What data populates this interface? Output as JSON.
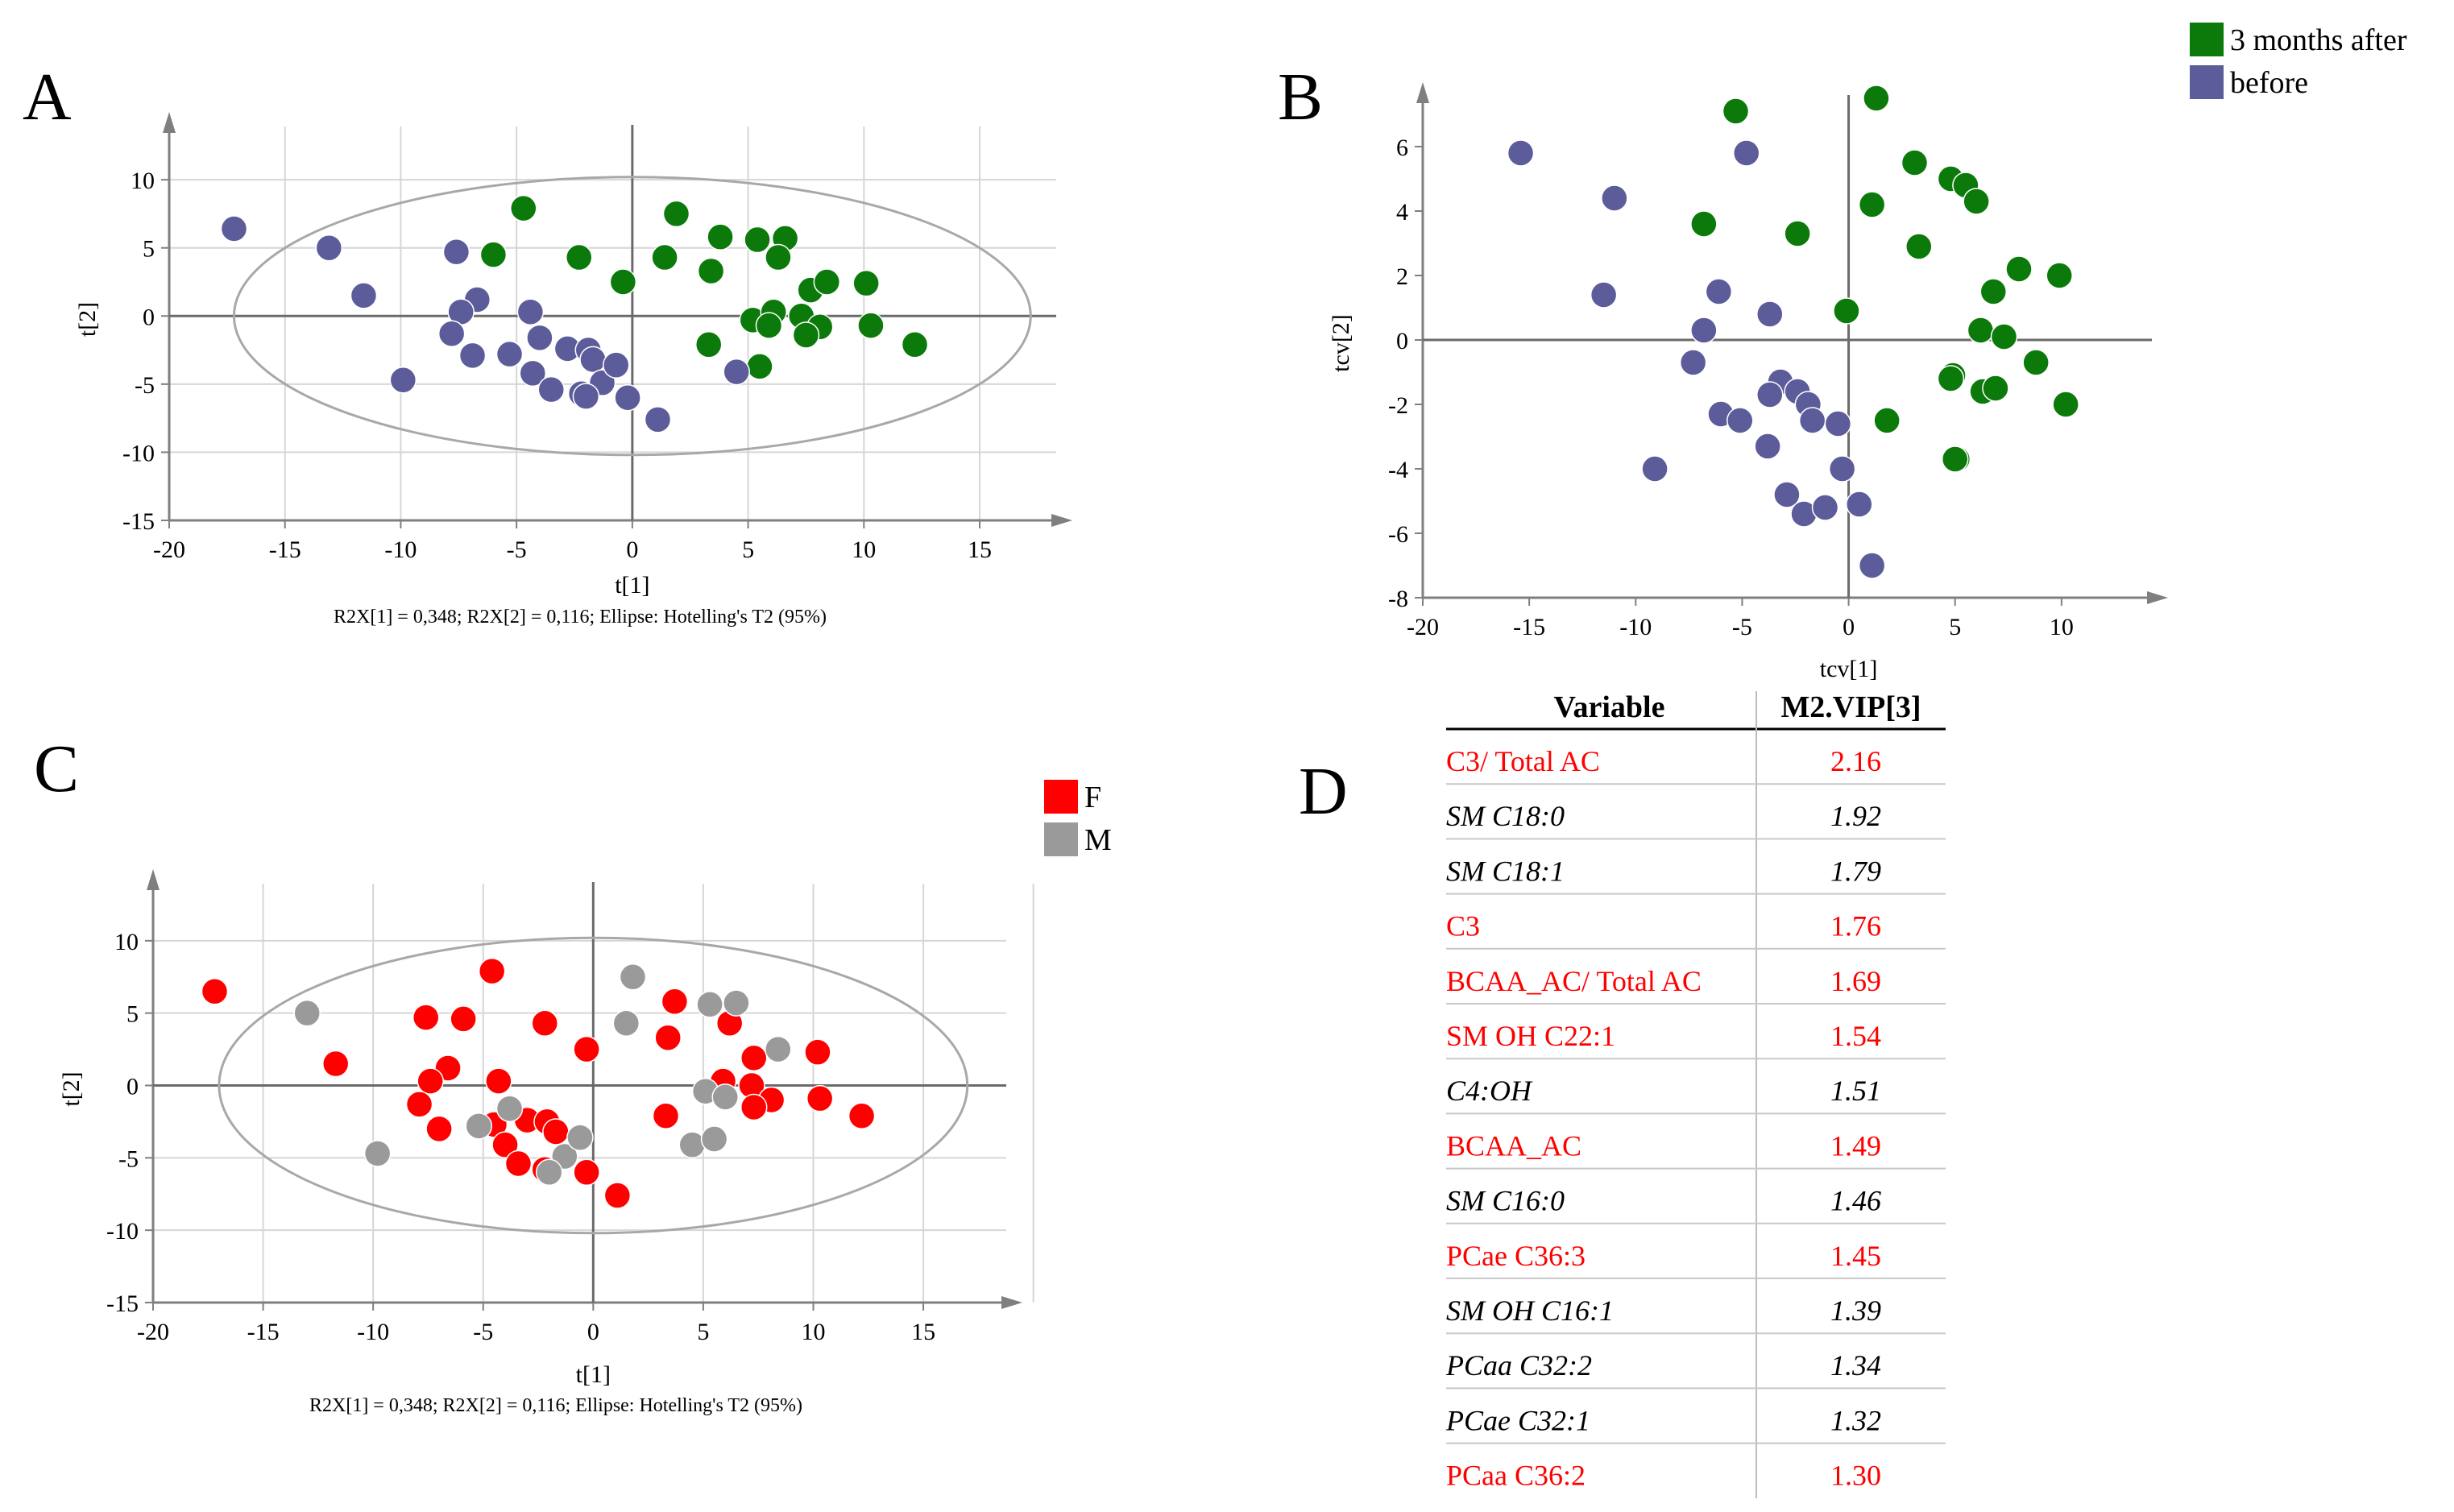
{
  "colors": {
    "green": "#0b7a0b",
    "purple": "#5d5c9a",
    "red": "#ff0000",
    "gray": "#9a9a9a",
    "grid": "#d6d6d6",
    "axis": "#7f7f7f",
    "ellipse": "#a8a8a8",
    "table_red": "#ff0000",
    "table_black": "#000000"
  },
  "chart_data": [
    {
      "panel": "A",
      "type": "scatter",
      "xlabel": "t[1]",
      "ylabel": "t[2]",
      "xticks": [
        -20,
        -15,
        -10,
        -5,
        0,
        5,
        10,
        15
      ],
      "yticks": [
        10,
        5,
        0,
        -5,
        -10,
        -15
      ],
      "xlim": [
        -20,
        19
      ],
      "ylim": [
        -15,
        14.5
      ],
      "grid": true,
      "ellipse": {
        "cx": 0,
        "cy": 0,
        "rx": 17.2,
        "ry": 10.2
      },
      "footnote": "R2X[1] = 0,348; R2X[2] = 0,116; Ellipse: Hotelling's T2 (95%)",
      "series": [
        {
          "name": "3 months after",
          "color": "green",
          "points": [
            [
              -4.7,
              7.9
            ],
            [
              -6.0,
              4.5
            ],
            [
              -2.3,
              4.3
            ],
            [
              -0.4,
              2.5
            ],
            [
              1.4,
              4.3
            ],
            [
              1.9,
              7.5
            ],
            [
              3.4,
              3.3
            ],
            [
              3.8,
              5.8
            ],
            [
              5.4,
              5.6
            ],
            [
              6.6,
              5.7
            ],
            [
              6.3,
              4.3
            ],
            [
              7.7,
              1.9
            ],
            [
              8.4,
              2.5
            ],
            [
              10.1,
              2.4
            ],
            [
              5.2,
              -0.3
            ],
            [
              6.1,
              0.3
            ],
            [
              7.3,
              0.0
            ],
            [
              5.9,
              -0.7
            ],
            [
              8.1,
              -0.8
            ],
            [
              10.3,
              -0.7
            ],
            [
              7.5,
              -1.4
            ],
            [
              3.3,
              -2.1
            ],
            [
              5.5,
              -3.7
            ],
            [
              12.2,
              -2.1
            ]
          ]
        },
        {
          "name": "before",
          "color": "purple",
          "points": [
            [
              -17.2,
              6.4
            ],
            [
              -13.1,
              5.0
            ],
            [
              -11.6,
              1.5
            ],
            [
              -7.6,
              4.7
            ],
            [
              -6.7,
              1.2
            ],
            [
              -7.4,
              0.3
            ],
            [
              -7.8,
              -1.3
            ],
            [
              -6.9,
              -2.9
            ],
            [
              -9.9,
              -4.7
            ],
            [
              -5.3,
              -2.8
            ],
            [
              -4.4,
              0.3
            ],
            [
              -4.0,
              -1.6
            ],
            [
              -2.8,
              -2.4
            ],
            [
              -4.3,
              -4.2
            ],
            [
              -3.5,
              -5.4
            ],
            [
              -2.2,
              -5.7
            ],
            [
              -1.9,
              -2.5
            ],
            [
              -1.7,
              -3.2
            ],
            [
              -1.3,
              -4.9
            ],
            [
              -0.7,
              -3.6
            ],
            [
              -2.0,
              -5.9
            ],
            [
              -0.2,
              -6.0
            ],
            [
              1.1,
              -7.6
            ],
            [
              4.5,
              -4.1
            ]
          ]
        }
      ]
    },
    {
      "panel": "B",
      "type": "scatter",
      "xlabel": "tcv[1]",
      "ylabel": "tcv[2]",
      "xticks": [
        -20,
        -15,
        -10,
        -5,
        0,
        5,
        10
      ],
      "yticks": [
        6,
        4,
        2,
        0,
        -2,
        -4,
        -6,
        -8
      ],
      "xlim": [
        -20,
        15
      ],
      "ylim": [
        -8,
        7.8
      ],
      "grid": false,
      "legend": {
        "position": "top-right",
        "entries": [
          {
            "label": "3 months after",
            "color": "green"
          },
          {
            "label": "before",
            "color": "purple"
          }
        ]
      },
      "series": [
        {
          "name": "3 months after",
          "color": "green",
          "points": [
            [
              -5.3,
              7.1
            ],
            [
              1.3,
              7.5
            ],
            [
              3.1,
              5.5
            ],
            [
              4.8,
              5.0
            ],
            [
              5.5,
              4.8
            ],
            [
              6.0,
              4.3
            ],
            [
              1.1,
              4.2
            ],
            [
              -6.8,
              3.6
            ],
            [
              -2.4,
              3.3
            ],
            [
              3.3,
              2.9
            ],
            [
              8.0,
              2.2
            ],
            [
              9.9,
              2.0
            ],
            [
              6.8,
              1.5
            ],
            [
              -0.1,
              0.9
            ],
            [
              6.2,
              0.3
            ],
            [
              7.3,
              0.1
            ],
            [
              8.8,
              -0.7
            ],
            [
              4.9,
              -1.1
            ],
            [
              4.8,
              -1.2
            ],
            [
              6.3,
              -1.6
            ],
            [
              6.9,
              -1.5
            ],
            [
              10.2,
              -2.0
            ],
            [
              1.8,
              -2.5
            ],
            [
              5.1,
              -3.7
            ],
            [
              5.0,
              -3.7
            ]
          ]
        },
        {
          "name": "before",
          "color": "purple",
          "points": [
            [
              -15.4,
              5.8
            ],
            [
              -11.0,
              4.4
            ],
            [
              -4.8,
              5.8
            ],
            [
              -11.5,
              1.4
            ],
            [
              -6.1,
              1.5
            ],
            [
              -3.7,
              0.8
            ],
            [
              -6.8,
              0.3
            ],
            [
              -7.3,
              -0.7
            ],
            [
              -3.2,
              -1.3
            ],
            [
              -3.7,
              -1.7
            ],
            [
              -2.4,
              -1.6
            ],
            [
              -1.9,
              -2.0
            ],
            [
              -1.7,
              -2.5
            ],
            [
              -0.5,
              -2.6
            ],
            [
              -6.0,
              -2.3
            ],
            [
              -5.1,
              -2.5
            ],
            [
              -3.8,
              -3.3
            ],
            [
              -9.1,
              -4.0
            ],
            [
              -0.3,
              -4.0
            ],
            [
              -2.9,
              -4.8
            ],
            [
              -2.1,
              -5.4
            ],
            [
              -1.1,
              -5.2
            ],
            [
              0.5,
              -5.1
            ],
            [
              1.1,
              -7.0
            ]
          ]
        }
      ]
    },
    {
      "panel": "C",
      "type": "scatter",
      "xlabel": "t[1]",
      "ylabel": "t[2]",
      "xticks": [
        -20,
        -15,
        -10,
        -5,
        0,
        5,
        10,
        15
      ],
      "yticks": [
        10,
        5,
        0,
        -5,
        -10,
        -15
      ],
      "xlim": [
        -20,
        19.5
      ],
      "ylim": [
        -15,
        14.5
      ],
      "grid": true,
      "ellipse": {
        "cx": 0,
        "cy": 0,
        "rx": 17.0,
        "ry": 10.2
      },
      "footnote": "R2X[1] = 0,348; R2X[2] = 0,116; Ellipse: Hotelling's T2 (95%)",
      "legend": {
        "position": "top-right",
        "entries": [
          {
            "label": "F",
            "color": "red"
          },
          {
            "label": "M",
            "color": "gray"
          }
        ]
      },
      "series": [
        {
          "name": "F",
          "color": "red",
          "points": [
            [
              -17.2,
              6.5
            ],
            [
              -11.7,
              1.5
            ],
            [
              -7.6,
              4.7
            ],
            [
              -5.9,
              4.6
            ],
            [
              -4.6,
              7.9
            ],
            [
              -2.2,
              4.3
            ],
            [
              -0.3,
              2.5
            ],
            [
              3.7,
              5.8
            ],
            [
              6.2,
              4.3
            ],
            [
              3.4,
              3.3
            ],
            [
              7.3,
              1.9
            ],
            [
              10.2,
              2.3
            ],
            [
              -6.6,
              1.2
            ],
            [
              -7.4,
              0.3
            ],
            [
              -4.3,
              0.3
            ],
            [
              -7.9,
              -1.3
            ],
            [
              -7.0,
              -3.0
            ],
            [
              -4.5,
              -2.7
            ],
            [
              -3.0,
              -2.4
            ],
            [
              -2.1,
              -2.5
            ],
            [
              -1.7,
              -3.2
            ],
            [
              -4.0,
              -4.1
            ],
            [
              -3.4,
              -5.4
            ],
            [
              -2.2,
              -5.8
            ],
            [
              -0.3,
              -6.0
            ],
            [
              1.1,
              -7.6
            ],
            [
              5.9,
              0.3
            ],
            [
              7.2,
              0.0
            ],
            [
              8.1,
              -1.0
            ],
            [
              7.3,
              -1.5
            ],
            [
              10.3,
              -0.9
            ],
            [
              12.2,
              -2.1
            ],
            [
              3.3,
              -2.1
            ]
          ]
        },
        {
          "name": "M",
          "color": "gray",
          "points": [
            [
              -13.0,
              5.0
            ],
            [
              -9.8,
              -4.7
            ],
            [
              -5.2,
              -2.8
            ],
            [
              -3.8,
              -1.6
            ],
            [
              -1.3,
              -4.9
            ],
            [
              -0.6,
              -3.6
            ],
            [
              -2.0,
              -6.0
            ],
            [
              1.8,
              7.5
            ],
            [
              1.5,
              4.3
            ],
            [
              5.3,
              5.6
            ],
            [
              6.5,
              5.7
            ],
            [
              8.4,
              2.5
            ],
            [
              5.1,
              -0.4
            ],
            [
              6.0,
              -0.8
            ],
            [
              4.5,
              -4.1
            ],
            [
              5.5,
              -3.7
            ]
          ]
        }
      ]
    }
  ],
  "labels": {
    "panel_a": "A",
    "panel_b": "B",
    "panel_c": "C",
    "panel_d": "D"
  },
  "table": {
    "headers": [
      "Variable",
      "M2.VIP[3]"
    ],
    "rows": [
      {
        "variable": "C3/ Total AC",
        "vip": "2.16",
        "style": "red"
      },
      {
        "variable": "SM C18:0",
        "vip": "1.92",
        "style": "italic"
      },
      {
        "variable": "SM C18:1",
        "vip": "1.79",
        "style": "italic"
      },
      {
        "variable": "C3",
        "vip": "1.76",
        "style": "red"
      },
      {
        "variable": "BCAA_AC/ Total AC",
        "vip": "1.69",
        "style": "red"
      },
      {
        "variable": "SM OH C22:1",
        "vip": "1.54",
        "style": "red"
      },
      {
        "variable": "C4:OH",
        "vip": "1.51",
        "style": "italic"
      },
      {
        "variable": "BCAA_AC",
        "vip": "1.49",
        "style": "red"
      },
      {
        "variable": "SM C16:0",
        "vip": "1.46",
        "style": "italic"
      },
      {
        "variable": "PCae C36:3",
        "vip": "1.45",
        "style": "red"
      },
      {
        "variable": "SM OH C16:1",
        "vip": "1.39",
        "style": "italic"
      },
      {
        "variable": "PCaa C32:2",
        "vip": "1.34",
        "style": "italic"
      },
      {
        "variable": "PCae C32:1",
        "vip": "1.32",
        "style": "italic"
      },
      {
        "variable": "PCaa C36:2",
        "vip": "1.30",
        "style": "red"
      }
    ]
  }
}
